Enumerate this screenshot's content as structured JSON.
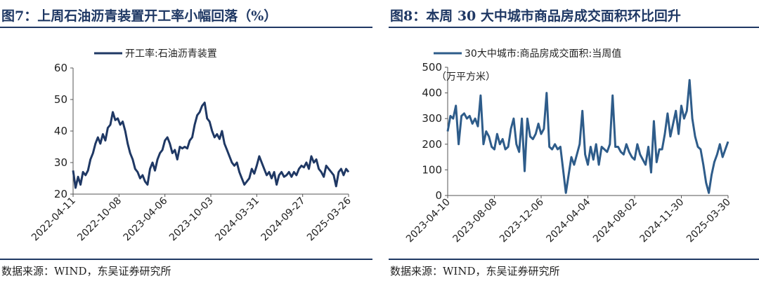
{
  "left": {
    "title": "图7：上周石油沥青装置开工率小幅回落（%）",
    "source": "数据来源：WIND，东吴证券研究所"
  },
  "right": {
    "title": "图8：本周 30 大中城市商品房成交面积环比回升",
    "source": "数据来源：WIND，东吴证券研究所"
  },
  "chart_data": [
    {
      "type": "line",
      "legend": "开工率:石油沥青装置",
      "ylim": [
        20,
        60
      ],
      "yticks": [
        20,
        30,
        40,
        50,
        60
      ],
      "xticks": [
        "2022-04-11",
        "2022-10-08",
        "2023-04-06",
        "2023-10-03",
        "2024-03-31",
        "2024-09-27",
        "2025-03-26"
      ],
      "color": "#1f3864",
      "series": [
        {
          "name": "开工率:石油沥青装置",
          "values": [
            27.5,
            22,
            25.5,
            23,
            27,
            26,
            27.5,
            31,
            33,
            36,
            38,
            36,
            39,
            37,
            41,
            42,
            46,
            43.5,
            44,
            42,
            43,
            40,
            36,
            33,
            31,
            28,
            27,
            25,
            26,
            24,
            23,
            28,
            30,
            27.5,
            31,
            33,
            34,
            37,
            38,
            36,
            33,
            34,
            31,
            35,
            34.5,
            35,
            34.5,
            37,
            38,
            42,
            45,
            46,
            48,
            49,
            44,
            43,
            40,
            38,
            39,
            37.5,
            40,
            36,
            34,
            32,
            30,
            29,
            30,
            27,
            25,
            23,
            24,
            25,
            28,
            26.5,
            29,
            32,
            30,
            28,
            26,
            27,
            25,
            27,
            23,
            26,
            27,
            25.5,
            26,
            27,
            25.5,
            27,
            26,
            28,
            29,
            28.5,
            30,
            28,
            32,
            30,
            31,
            28,
            27,
            25.5,
            29,
            28,
            27,
            26,
            22.5,
            27,
            28,
            26,
            28,
            27
          ]
        }
      ]
    },
    {
      "type": "line",
      "legend": "30大中城市:商品房成交面积:当周值",
      "unit": "（万平方米）",
      "ylim": [
        0,
        500
      ],
      "yticks": [
        0,
        100,
        200,
        300,
        400,
        500
      ],
      "xticks": [
        "2023-04-10",
        "2023-08-08",
        "2023-12-06",
        "2024-04-04",
        "2024-08-02",
        "2024-11-30",
        "2025-03-30"
      ],
      "color": "#2e5c8a",
      "series": [
        {
          "name": "30大中城市:商品房成交面积:当周值",
          "values": [
            250,
            310,
            300,
            350,
            200,
            310,
            320,
            300,
            310,
            280,
            300,
            270,
            390,
            200,
            250,
            230,
            190,
            180,
            240,
            200,
            220,
            180,
            190,
            260,
            300,
            200,
            170,
            300,
            95,
            300,
            230,
            220,
            240,
            280,
            240,
            260,
            400,
            190,
            180,
            200,
            180,
            190,
            100,
            10,
            80,
            150,
            120,
            160,
            200,
            330,
            160,
            120,
            190,
            140,
            200,
            120,
            190,
            180,
            170,
            200,
            390,
            190,
            190,
            170,
            160,
            200,
            170,
            150,
            140,
            200,
            160,
            140,
            120,
            190,
            90,
            290,
            130,
            180,
            180,
            240,
            320,
            230,
            280,
            330,
            240,
            350,
            300,
            330,
            450,
            300,
            230,
            190,
            180,
            120,
            50,
            10,
            80,
            130,
            160,
            200,
            150,
            180,
            210
          ]
        }
      ]
    }
  ]
}
